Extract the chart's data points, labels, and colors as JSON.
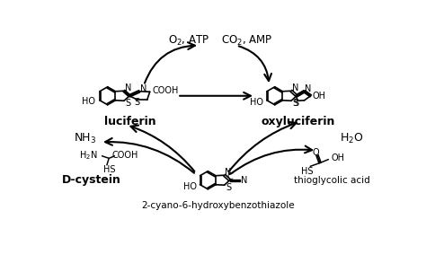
{
  "background_color": "#ffffff",
  "fig_width": 4.74,
  "fig_height": 2.93,
  "dpi": 100,
  "text_color": "#000000",
  "arrow_color": "#000000",
  "line_width": 1.2,
  "font_size_top": 8.5,
  "font_size_label": 9.0,
  "font_size_struct": 7.0,
  "font_size_small": 6.5,
  "top_left": "O$_2$, ATP",
  "top_right": "CO$_2$, AMP",
  "luciferin_label": "luciferin",
  "oxyluciferin_label": "oxyluciferin",
  "nh3_label": "NH$_3$",
  "h2o_label": "H$_2$O",
  "dcystein_label": "D-cystein",
  "thioglycolic_label": "thioglycolic acid",
  "chb_label": "2-cyano-6-hydroxybenzothiazole"
}
